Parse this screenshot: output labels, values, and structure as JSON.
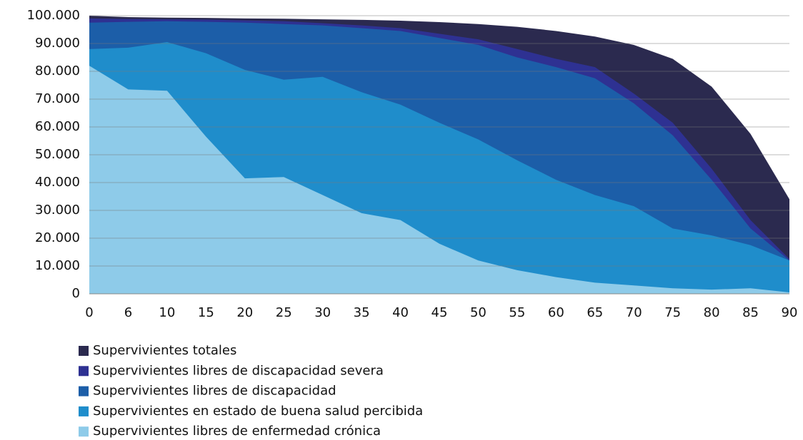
{
  "chart_data": {
    "type": "area",
    "categories": [
      "0",
      "6",
      "10",
      "15",
      "20",
      "25",
      "30",
      "35",
      "40",
      "45",
      "50",
      "55",
      "60",
      "65",
      "70",
      "75",
      "80",
      "85",
      "90"
    ],
    "series": [
      {
        "name": "Supervivientes totales",
        "color": "#2b2a4f",
        "values": [
          100000,
          99500,
          99300,
          99200,
          99000,
          98900,
          98700,
          98500,
          98200,
          97700,
          97000,
          96000,
          94500,
          92500,
          89500,
          84500,
          74500,
          57500,
          34000
        ]
      },
      {
        "name": "Supervivientes libres de discapacidad severa",
        "color": "#2e3192",
        "values": [
          99000,
          98800,
          98700,
          98600,
          98300,
          98000,
          97300,
          96500,
          95500,
          93500,
          91500,
          88000,
          84500,
          81500,
          72000,
          61500,
          45000,
          26500,
          12500
        ]
      },
      {
        "name": "Supervivientes libres de discapacidad",
        "color": "#1c5ea8",
        "values": [
          97500,
          97800,
          98000,
          97800,
          97500,
          97000,
          96500,
          95500,
          94500,
          92000,
          89500,
          85000,
          81500,
          77500,
          68500,
          57000,
          41000,
          23500,
          12000
        ]
      },
      {
        "name": "Supervivientes en estado de buena salud percibida",
        "color": "#1f8dcb",
        "values": [
          88000,
          88500,
          90500,
          86500,
          80500,
          77000,
          78000,
          72500,
          68000,
          61500,
          55500,
          48000,
          41000,
          35500,
          31500,
          23500,
          21000,
          17500,
          12000
        ]
      },
      {
        "name": "Supervivientes libres de enfermedad crónica",
        "color": "#8ecbe9",
        "values": [
          82000,
          73500,
          73000,
          56500,
          41500,
          42000,
          35500,
          29000,
          26500,
          18000,
          12000,
          8500,
          6000,
          4000,
          3000,
          2000,
          1500,
          2000,
          500
        ]
      }
    ],
    "ylim": [
      0,
      100000
    ],
    "yticks": [
      0,
      {
        "value": 10000,
        "label": "10.000"
      },
      {
        "value": 20000,
        "label": "20.000"
      },
      {
        "value": 30000,
        "label": "30.000"
      },
      {
        "value": 40000,
        "label": "40.000"
      },
      {
        "value": 50000,
        "label": "50.000"
      },
      {
        "value": 60000,
        "label": "60.000"
      },
      {
        "value": 70000,
        "label": "70.000"
      },
      {
        "value": 80000,
        "label": "80.000"
      },
      {
        "value": 90000,
        "label": "90.000"
      },
      {
        "value": 100000,
        "label": "100.000"
      }
    ],
    "grid": true
  }
}
